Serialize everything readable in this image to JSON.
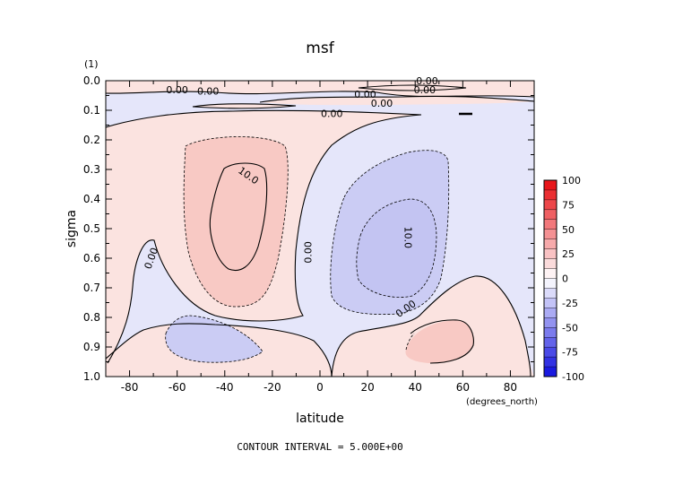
{
  "chart_data": {
    "type": "contour",
    "title": "msf",
    "subtitle": "(1)",
    "xlabel": "latitude",
    "x_units": "(degrees_north)",
    "ylabel": "sigma",
    "xlim": [
      -90,
      90
    ],
    "ylim": [
      1.0,
      0.0
    ],
    "x_ticks": [
      -80,
      -60,
      -40,
      -20,
      0,
      20,
      40,
      60,
      80
    ],
    "y_ticks": [
      0.0,
      0.1,
      0.2,
      0.3,
      0.4,
      0.5,
      0.6,
      0.7,
      0.8,
      0.9,
      1.0
    ],
    "x_tick_labels": [
      "-80",
      "-60",
      "-40",
      "-20",
      "0",
      "20",
      "40",
      "60",
      "80"
    ],
    "y_tick_labels": [
      "0.0",
      "0.1",
      "0.2",
      "0.3",
      "0.4",
      "0.5",
      "0.6",
      "0.7",
      "0.8",
      "0.9",
      "1.0"
    ],
    "colorbar": {
      "levels": [
        -100,
        -75,
        -50,
        -25,
        0,
        25,
        50,
        75,
        100
      ],
      "labels": [
        "100",
        "75",
        "50",
        "25",
        "0",
        "-25",
        "-50",
        "-75",
        "-100"
      ],
      "positive_color": "#e8161a",
      "negative_color": "#1a1ae0"
    },
    "contour_labels": [
      {
        "text": "0.00",
        "lat": -60,
        "sigma": 0.03
      },
      {
        "text": "0.00",
        "lat": -47,
        "sigma": 0.035
      },
      {
        "text": "0.00",
        "lat": 19,
        "sigma": 0.045
      },
      {
        "text": "0.00",
        "lat": 26,
        "sigma": 0.075
      },
      {
        "text": "0.00",
        "lat": 45,
        "sigma": 0.0
      },
      {
        "text": "0.00",
        "lat": 44,
        "sigma": 0.03
      },
      {
        "text": "0.00",
        "lat": 5,
        "sigma": 0.11
      },
      {
        "text": "10.0",
        "lat": -30,
        "sigma": 0.32
      },
      {
        "text": "10.0",
        "lat": 37,
        "sigma": 0.53
      },
      {
        "text": "0.00",
        "lat": -5,
        "sigma": 0.58
      },
      {
        "text": "0.00",
        "lat": -71,
        "sigma": 0.6
      },
      {
        "text": "0.00",
        "lat": 36,
        "sigma": 0.77
      }
    ],
    "footer": "CONTOUR INTERVAL = 5.000E+00"
  },
  "colors": {
    "light_red": "#fbe3e0",
    "medium_red": "#f8c9c4",
    "light_blue": "#e5e6fa",
    "medium_blue": "#cbccf4",
    "axis": "#000000"
  }
}
